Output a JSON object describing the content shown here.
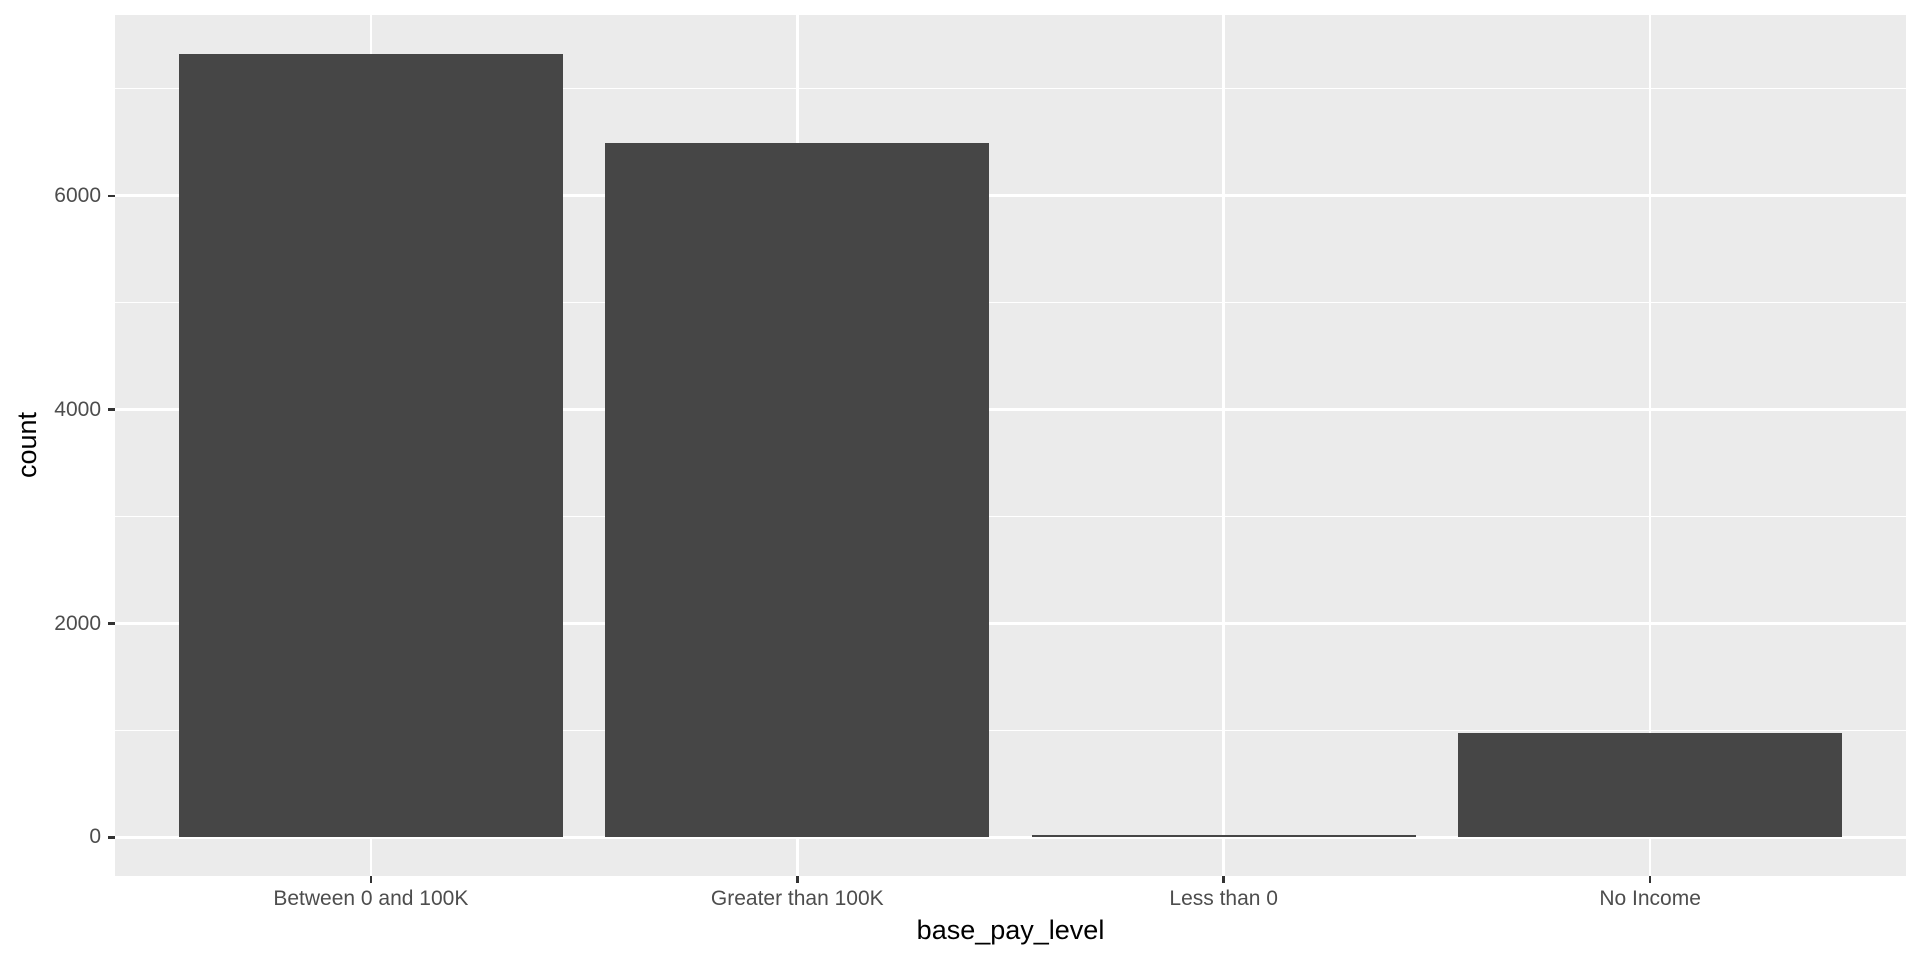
{
  "chart_data": {
    "type": "bar",
    "title": "",
    "xlabel": "base_pay_level",
    "ylabel": "count",
    "categories": [
      "Between 0 and 100K",
      "Greater than 100K",
      "Less than 0",
      "No Income"
    ],
    "values": [
      7330,
      6490,
      25,
      980
    ],
    "yticks": [
      0,
      2000,
      4000,
      6000
    ],
    "yticks_minor": [
      1000,
      3000,
      5000,
      7000
    ],
    "ylim": [
      0,
      7690
    ],
    "panel_y_range": [
      -360,
      7690
    ],
    "x_domain": [
      0.4,
      4.6
    ],
    "bar_width_units": 0.9,
    "grid": {
      "horizontal": "major and minor gridlines",
      "vertical": "major gridlines at category centers"
    },
    "legend_position": "none",
    "colors": {
      "figure_background": "#FFFFFF",
      "panel_background": "#EBEBEB",
      "gridline": "#FFFFFF",
      "bar_fill": "#464646",
      "axis_text": "#4D4D4D",
      "axis_tick_marks": "#333333",
      "axis_title": "#000000"
    }
  }
}
